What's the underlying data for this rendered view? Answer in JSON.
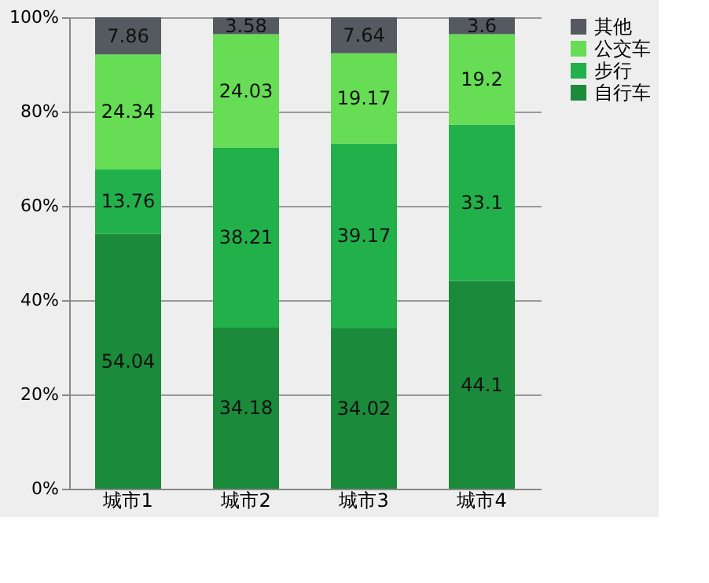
{
  "chart_data": {
    "type": "bar",
    "stacked": true,
    "categories": [
      "城市1",
      "城市2",
      "城市3",
      "城市4"
    ],
    "series": [
      {
        "name": "自行车",
        "color": "#1b8a3a",
        "values": [
          54.04,
          34.18,
          34.02,
          44.1
        ]
      },
      {
        "name": "步行",
        "color": "#22b04b",
        "values": [
          13.76,
          38.21,
          39.17,
          33.1
        ]
      },
      {
        "name": "公交车",
        "color": "#66dd55",
        "values": [
          24.34,
          24.03,
          19.17,
          19.2
        ]
      },
      {
        "name": "其他",
        "color": "#555a60",
        "values": [
          7.86,
          3.58,
          7.64,
          3.6
        ]
      }
    ],
    "ylim": [
      0,
      100
    ],
    "yticks": [
      {
        "value": 0,
        "label": "0%"
      },
      {
        "value": 20,
        "label": "20%"
      },
      {
        "value": 40,
        "label": "40%"
      },
      {
        "value": 60,
        "label": "60%"
      },
      {
        "value": 80,
        "label": "80%"
      },
      {
        "value": 100,
        "label": "100%"
      }
    ],
    "grid": "y",
    "legend": "right",
    "data_labels": true
  }
}
